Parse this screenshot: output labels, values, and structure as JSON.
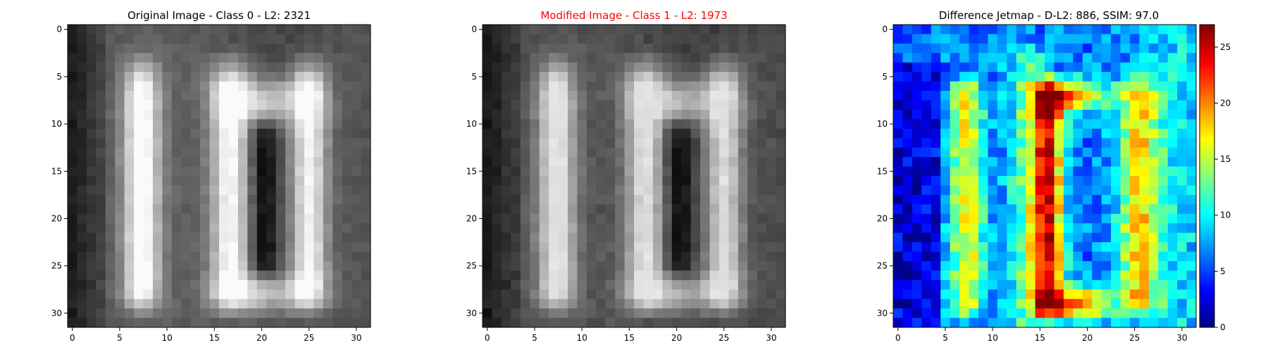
{
  "panels": [
    {
      "title": "Original Image - Class 0 - L2: 2321",
      "title_color": "#000000"
    },
    {
      "title": "Modified Image - Class 1 - L2: 1973",
      "title_color": "#ff0000"
    },
    {
      "title": "Difference Jetmap - D-L2: 886, SSIM: 97.0",
      "title_color": "#000000"
    }
  ],
  "chart_data": [
    {
      "type": "heatmap",
      "title": "Original Image - Class 0 - L2: 2321",
      "colormap": "gray",
      "rows": 32,
      "cols": 32,
      "xlim": [
        -0.5,
        31.5
      ],
      "ylim": [
        31.5,
        -0.5
      ],
      "x_ticks": [
        0,
        5,
        10,
        15,
        20,
        25,
        30
      ],
      "y_ticks": [
        0,
        5,
        10,
        15,
        20,
        25,
        30
      ],
      "content": "two vertical bright digit strokes ('0' shapes) on a dark background; left stroke spans columns ~5-10, right ring spans columns ~14-27"
    },
    {
      "type": "heatmap",
      "title": "Modified Image - Class 1 - L2: 1973",
      "colormap": "gray",
      "rows": 32,
      "cols": 32,
      "xlim": [
        -0.5,
        31.5
      ],
      "ylim": [
        31.5,
        -0.5
      ],
      "x_ticks": [
        0,
        5,
        10,
        15,
        20,
        25,
        30
      ],
      "y_ticks": [
        0,
        5,
        10,
        15,
        20,
        25,
        30
      ],
      "content": "nearly identical to the original with slightly dimmer strokes"
    },
    {
      "type": "heatmap",
      "title": "Difference Jetmap - D-L2: 886, SSIM: 97.0",
      "colormap": "jet",
      "rows": 32,
      "cols": 32,
      "xlim": [
        -0.5,
        31.5
      ],
      "ylim": [
        31.5,
        -0.5
      ],
      "x_ticks": [
        0,
        5,
        10,
        15,
        20,
        25,
        30
      ],
      "y_ticks": [
        0,
        5,
        10,
        15,
        20,
        25,
        30
      ],
      "colorbar": {
        "min": 0,
        "max": 27,
        "ticks": [
          0,
          5,
          10,
          15,
          20,
          25
        ]
      },
      "content": "difference is highest (red, ~25) along the left edge of the right ring near rows 6-8 and 28-30, moderate (yellow-green, 12-18) along the strokes, low (blue, 0-5) in the background"
    }
  ]
}
